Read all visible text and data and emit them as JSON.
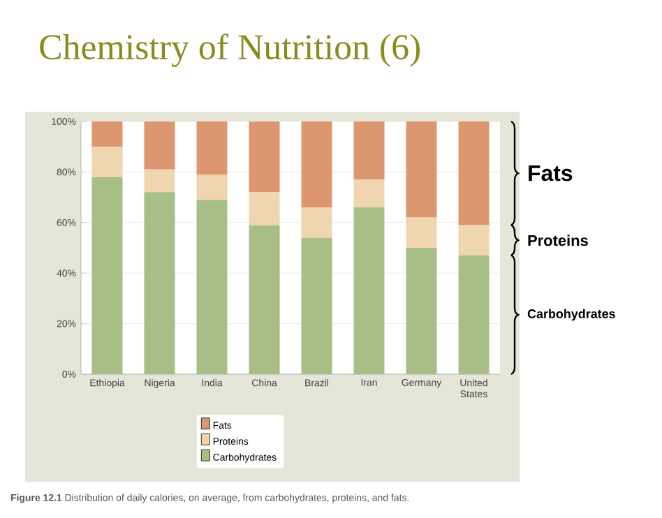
{
  "chart_data": {
    "type": "bar",
    "stacked": true,
    "title": "Chemistry of Nutrition (6)",
    "categories": [
      "Ethiopia",
      "Nigeria",
      "India",
      "China",
      "Brazil",
      "Iran",
      "Germany",
      "United States"
    ],
    "series": [
      {
        "name": "Carbohydrates",
        "color": "#a7bf86",
        "values": [
          78,
          72,
          69,
          59,
          54,
          66,
          50,
          47
        ]
      },
      {
        "name": "Proteins",
        "color": "#efd5b0",
        "values": [
          12,
          9,
          10,
          13,
          12,
          11,
          12,
          12
        ]
      },
      {
        "name": "Fats",
        "color": "#dc9670",
        "values": [
          10,
          19,
          21,
          28,
          34,
          23,
          38,
          41
        ]
      }
    ],
    "ylim": [
      0,
      100
    ],
    "yticks": [
      {
        "value": 0,
        "label": "0%"
      },
      {
        "value": 20,
        "label": "20%"
      },
      {
        "value": 40,
        "label": "40%"
      },
      {
        "value": 60,
        "label": "60%"
      },
      {
        "value": 80,
        "label": "80%"
      },
      {
        "value": 100,
        "label": "100%"
      }
    ],
    "grid": "y",
    "legend": "bottom",
    "annotations": [
      "Carbohydrates",
      "Proteins",
      "Fats",
      "**Figure 12.1** Distribution of daily calories, on average, from carbohydrates, proteins, and fats."
    ]
  }
}
